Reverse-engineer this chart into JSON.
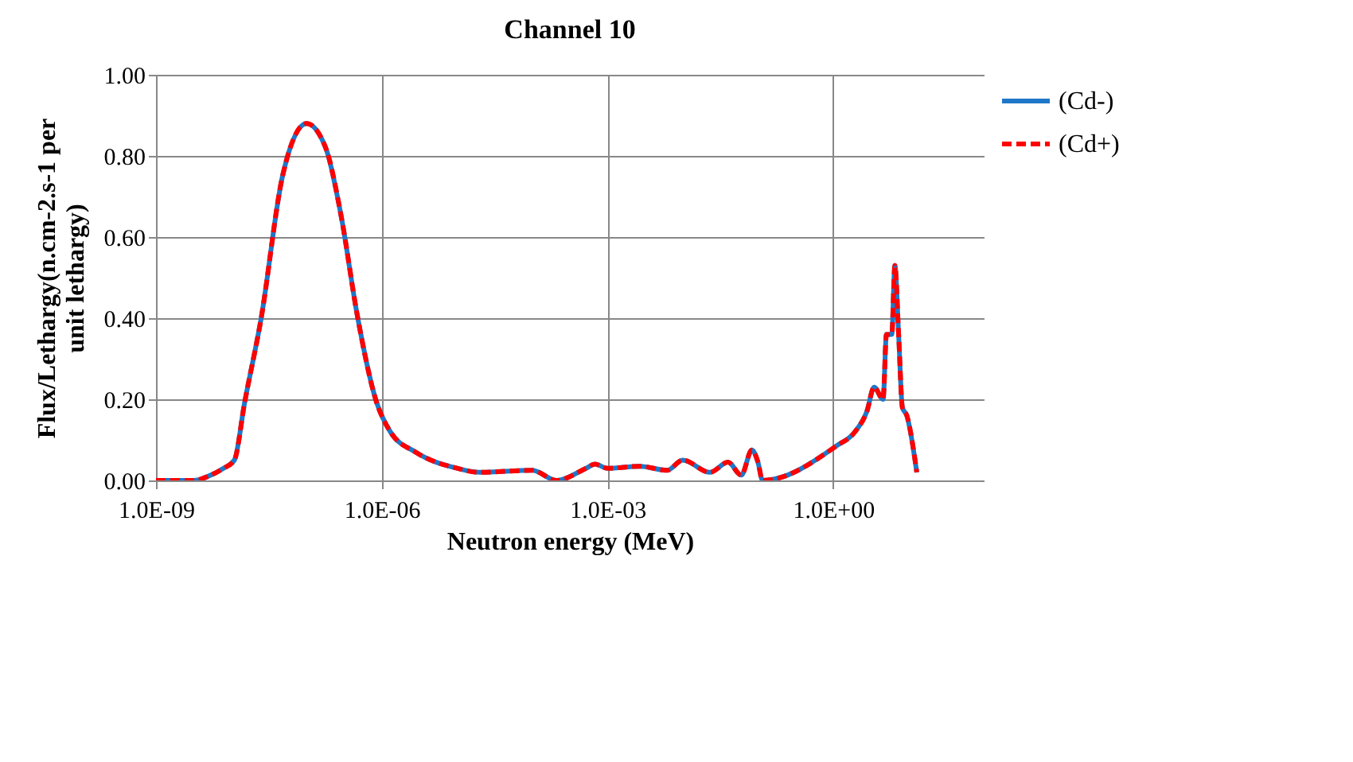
{
  "chart_data": {
    "type": "line",
    "title": "Channel 10",
    "xlabel": "Neutron energy (MeV)",
    "ylabel": "Flux/Lethargy(n.cm-2.s-1 per unit lethargy)",
    "log": "x",
    "grid": true,
    "legend": "right",
    "xlim": [
      1e-09,
      100
    ],
    "ylim": [
      0,
      1
    ],
    "xticks": [
      {
        "value": 1e-09,
        "label": "1.0E-09"
      },
      {
        "value": 1e-06,
        "label": "1.0E-06"
      },
      {
        "value": 0.001,
        "label": "1.0E-03"
      },
      {
        "value": 1,
        "label": "1.0E+00"
      }
    ],
    "yticks": [
      {
        "value": 0,
        "label": "0.00"
      },
      {
        "value": 0.2,
        "label": "0.20"
      },
      {
        "value": 0.4,
        "label": "0.40"
      },
      {
        "value": 0.6,
        "label": "0.60"
      },
      {
        "value": 0.8,
        "label": "0.80"
      },
      {
        "value": 1,
        "label": "1.00"
      }
    ],
    "x": [
      1e-09,
      3.2e-09,
      4.9e-09,
      7.9e-09,
      1.1e-08,
      1.5e-08,
      2.5e-08,
      4.8e-08,
      1e-07,
      1.8e-07,
      2.9e-07,
      4.7e-07,
      8.3e-07,
      1.3e-06,
      2.8e-06,
      1e-05,
      2e-05,
      0.0001,
      0.00021,
      0.00052,
      0.00068,
      0.001,
      0.0027,
      0.0062,
      0.01,
      0.023,
      0.04,
      0.06,
      0.083,
      0.1,
      0.115,
      1.1,
      1.95,
      2.8,
      3.5,
      4.6,
      5.1,
      6.0,
      6.6,
      7.4,
      8.3,
      9.5,
      12.9
    ],
    "series": [
      {
        "name": "(Cd-)",
        "color": "#1f77c8",
        "line_style": "solid",
        "values": [
          0,
          0,
          0.01,
          0.03,
          0.05,
          0.19,
          0.4,
          0.75,
          0.88,
          0.82,
          0.65,
          0.41,
          0.2,
          0.12,
          0.07,
          0.03,
          0.02,
          0.025,
          0.0,
          0.03,
          0.04,
          0.03,
          0.035,
          0.025,
          0.05,
          0.02,
          0.045,
          0.013,
          0.075,
          0.045,
          0.0,
          0.085,
          0.12,
          0.17,
          0.23,
          0.2,
          0.36,
          0.36,
          0.53,
          0.36,
          0.18,
          0.16,
          0.02
        ]
      },
      {
        "name": "(Cd+)",
        "color": "#ff0000",
        "line_style": "dashed",
        "values": [
          0,
          0,
          0.01,
          0.03,
          0.05,
          0.19,
          0.4,
          0.75,
          0.88,
          0.82,
          0.65,
          0.41,
          0.2,
          0.12,
          0.07,
          0.03,
          0.02,
          0.025,
          0.0,
          0.03,
          0.04,
          0.03,
          0.035,
          0.025,
          0.05,
          0.02,
          0.045,
          0.013,
          0.075,
          0.045,
          0.0,
          0.085,
          0.12,
          0.17,
          0.23,
          0.2,
          0.36,
          0.36,
          0.53,
          0.36,
          0.18,
          0.16,
          0.02
        ]
      }
    ]
  }
}
